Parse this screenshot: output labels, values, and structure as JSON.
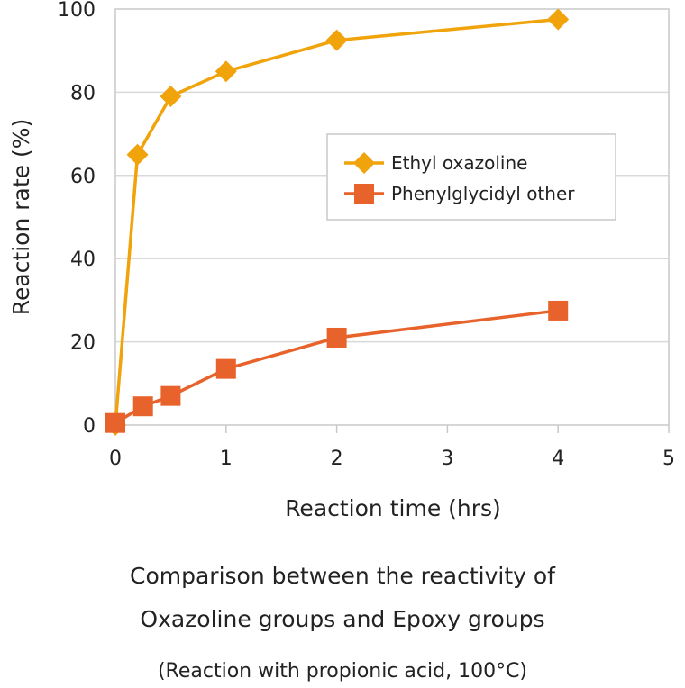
{
  "chart_data": {
    "type": "line",
    "xlabel": "Reaction time (hrs)",
    "ylabel": "Reaction rate (%)",
    "xlim": [
      0,
      5
    ],
    "ylim": [
      0,
      100
    ],
    "x_ticks": [
      "0",
      "1",
      "2",
      "3",
      "4",
      "5"
    ],
    "y_ticks": [
      "0",
      "20",
      "40",
      "60",
      "80",
      "100"
    ],
    "grid": "horizontal",
    "legend_position": "center-right",
    "series": [
      {
        "name": "Ethyl oxazoline",
        "color": "#f0a30a",
        "marker": "diamond",
        "x": [
          0,
          0.2,
          0.5,
          1.0,
          2.0,
          4.0
        ],
        "y": [
          0,
          65,
          79,
          85,
          92.5,
          97.5
        ]
      },
      {
        "name": "Phenylglycidyl other",
        "color": "#e8622c",
        "marker": "square",
        "x": [
          0,
          0.25,
          0.5,
          1.0,
          2.0,
          4.0
        ],
        "y": [
          0.5,
          4.5,
          7,
          13.5,
          21,
          27.5
        ]
      }
    ]
  },
  "caption": {
    "line1": "Comparison between the reactivity of",
    "line2": "Oxazoline groups and Epoxy groups",
    "note": "(Reaction with propionic acid, 100°C)"
  }
}
